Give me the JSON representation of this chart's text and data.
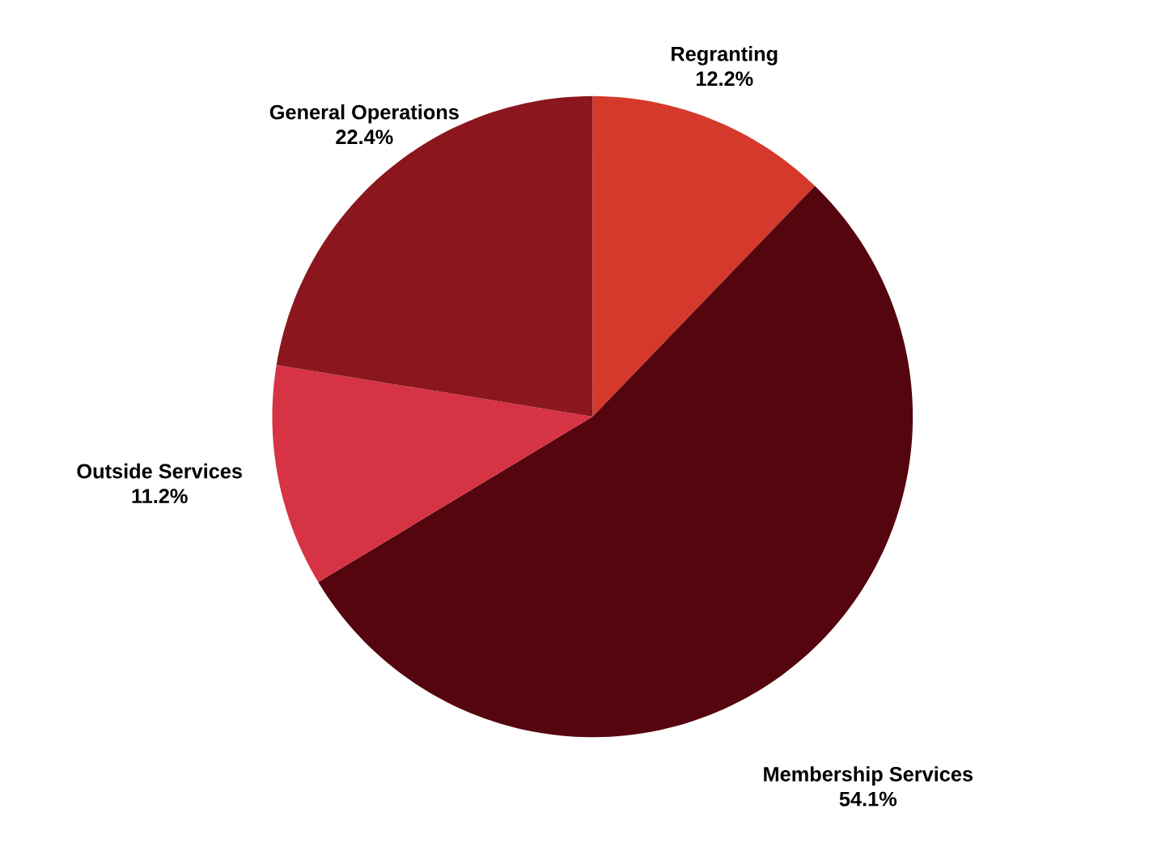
{
  "chart_data": {
    "type": "pie",
    "categories": [
      "Regranting",
      "Membership Services",
      "Outside Services",
      "General Operations"
    ],
    "values": [
      12.2,
      54.1,
      11.2,
      22.4
    ],
    "colors": [
      "#d5392c",
      "#55050d",
      "#d63344",
      "#8b161e"
    ],
    "value_labels": [
      "12.2%",
      "54.1%",
      "11.2%",
      "22.4%"
    ]
  }
}
